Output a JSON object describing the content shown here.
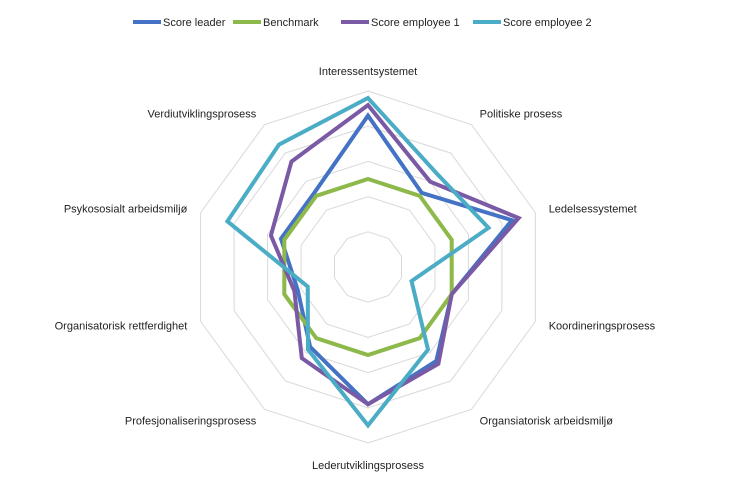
{
  "chart_data": {
    "type": "radar",
    "categories": [
      "Interessentsystemet",
      "Politiske prosess",
      "Ledelsessystemet",
      "Koordineringsprosess",
      "Organsiatorisk arbeidsmiljø",
      "Lederutviklingsprosess",
      "Profesjonaliseringsprosess",
      "Organisatorisk rettferdighet",
      "Psykososialt arbeidsmiljø",
      "Verdiutviklingsprosess"
    ],
    "rlim": [
      0,
      5
    ],
    "grid_levels": 5,
    "grid": true,
    "legend_position": "top",
    "series": [
      {
        "name": "Score leader",
        "color": "#4472C4",
        "values": [
          4.3,
          2.6,
          4.3,
          2.5,
          3.3,
          3.9,
          2.8,
          2.1,
          2.6,
          2.6
        ]
      },
      {
        "name": "Benchmark",
        "color": "#8DB84A",
        "values": [
          2.5,
          2.5,
          2.5,
          2.5,
          2.5,
          2.5,
          2.5,
          2.5,
          2.5,
          2.5
        ]
      },
      {
        "name": "Score employee 1",
        "color": "#7A59A5",
        "values": [
          4.6,
          3.0,
          4.5,
          2.5,
          3.4,
          3.9,
          3.2,
          2.2,
          2.9,
          3.7
        ]
      },
      {
        "name": "Score employee 2",
        "color": "#4BACC6",
        "values": [
          4.8,
          3.3,
          3.6,
          1.3,
          2.9,
          4.5,
          2.9,
          1.8,
          4.2,
          4.3
        ]
      }
    ]
  }
}
